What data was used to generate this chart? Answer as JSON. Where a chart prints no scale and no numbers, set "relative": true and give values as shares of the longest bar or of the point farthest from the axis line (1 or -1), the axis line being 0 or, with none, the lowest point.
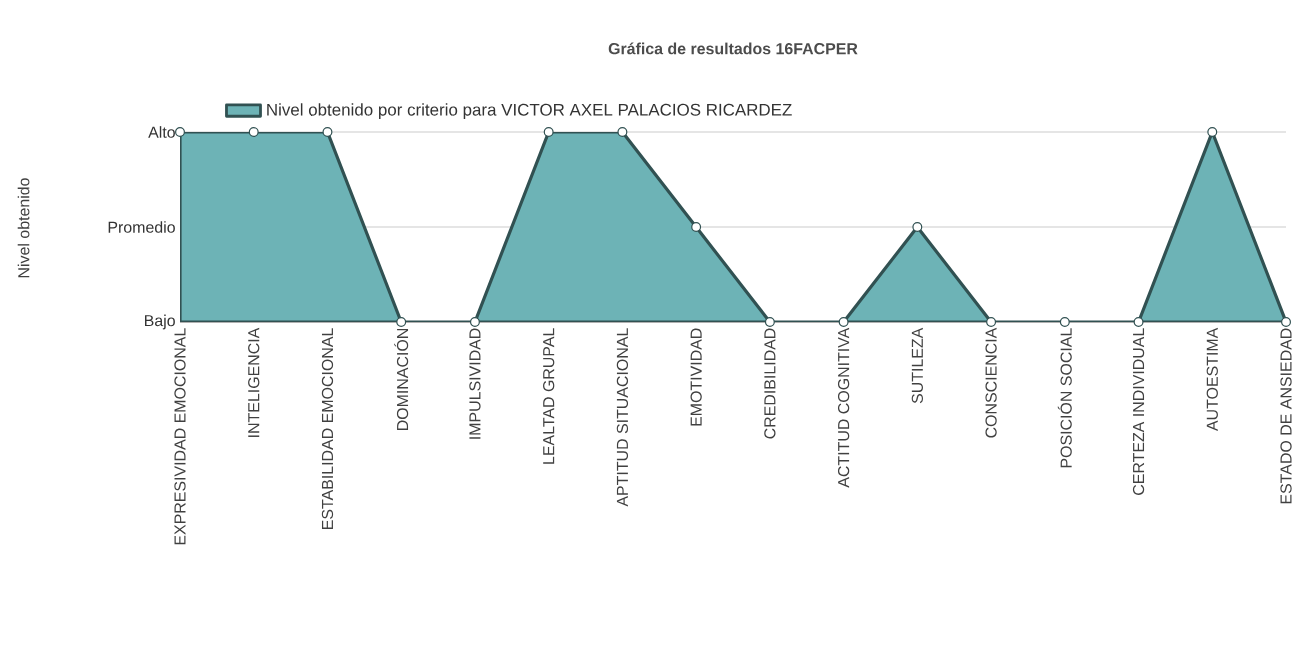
{
  "chart_data": {
    "type": "area",
    "title": "Gráfica de resultados 16FACPER",
    "annotations": [
      "Nivel obtenido"
    ],
    "categories": [
      "EXPRESIVIDAD EMOCIONAL",
      "INTELIGENCIA",
      "ESTABILIDAD EMOCIONAL",
      "DOMINACIÓN",
      "IMPULSIVIDAD",
      "LEALTAD GRUPAL",
      "APTITUD SITUACIONAL",
      "EMOTIVIDAD",
      "CREDIBILIDAD",
      "ACTITUD COGNITIVA",
      "SUTILEZA",
      "CONSCIENCIA",
      "POSICIÓN SOCIAL",
      "CERTEZA INDIVIDUAL",
      "AUTOESTIMA",
      "ESTADO DE ANSIEDAD"
    ],
    "series": [
      {
        "name": "Nivel obtenido por criterio para VICTOR AXEL PALACIOS RICARDEZ",
        "color": "#6db3b6",
        "values": [
          1,
          1,
          1,
          0,
          0,
          1,
          1,
          0.5,
          0,
          0,
          0.5,
          0,
          0,
          0,
          1,
          0
        ]
      }
    ],
    "relative": true,
    "ref_lines": [
      {
        "axis": "y",
        "value": 0,
        "label": "Bajo",
        "color": "#999999"
      },
      {
        "axis": "y",
        "value": 0.5,
        "label": "Promedio",
        "color": "#cccccc"
      },
      {
        "axis": "y",
        "value": 1,
        "label": "Alto",
        "color": "#cccccc"
      }
    ],
    "legend": "top",
    "marker": "circle"
  }
}
